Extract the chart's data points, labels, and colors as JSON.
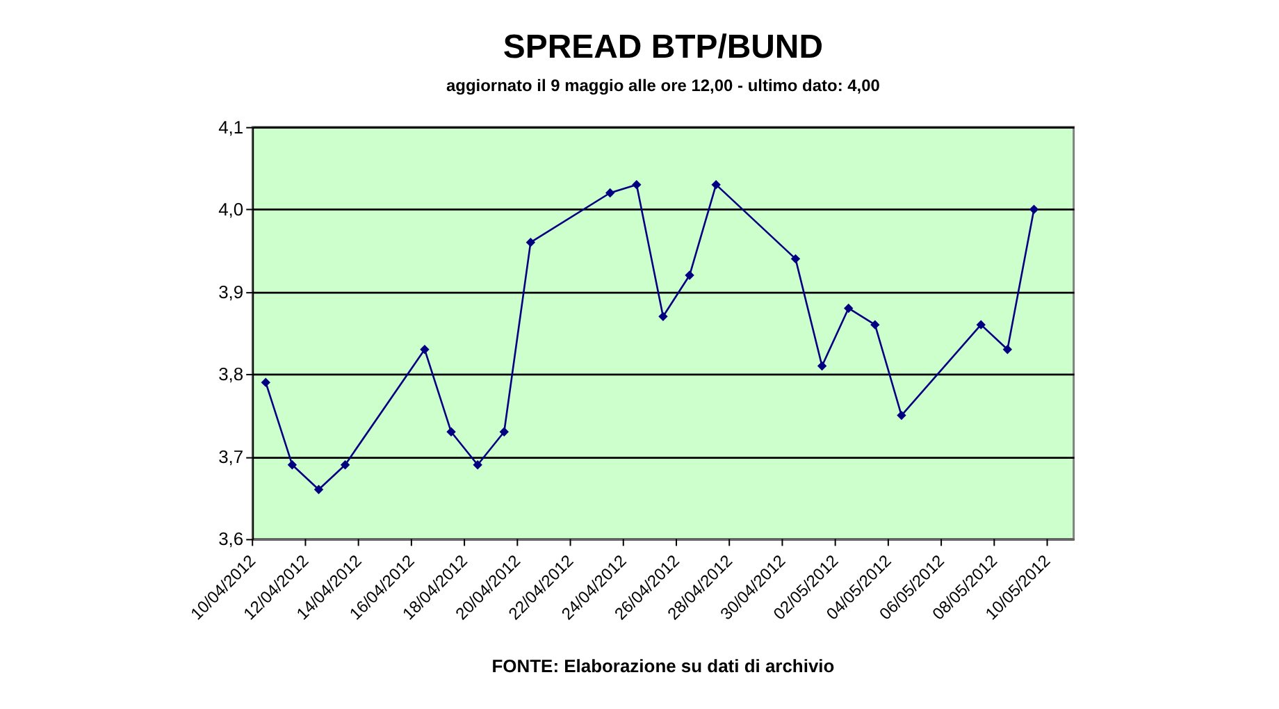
{
  "chart_data": {
    "type": "line",
    "title": "SPREAD BTP/BUND",
    "subtitle": "aggiornato il 9 maggio alle ore 12,00 - ultimo dato: 4,00",
    "annotations": [
      "FONTE: Elaborazione su dati di archivio"
    ],
    "x": [
      "2012-04-10T12:00",
      "2012-04-11T12:00",
      "2012-04-12T12:00",
      "2012-04-13T12:00",
      "2012-04-16T12:00",
      "2012-04-17T12:00",
      "2012-04-18T12:00",
      "2012-04-19T12:00",
      "2012-04-20T12:00",
      "2012-04-23T12:00",
      "2012-04-24T12:00",
      "2012-04-25T12:00",
      "2012-04-26T12:00",
      "2012-04-27T12:00",
      "2012-04-30T12:00",
      "2012-05-01T12:00",
      "2012-05-02T12:00",
      "2012-05-03T12:00",
      "2012-05-04T12:00",
      "2012-05-07T12:00",
      "2012-05-08T12:00",
      "2012-05-09T12:00"
    ],
    "series": [
      {
        "color": "#000080",
        "values": [
          3.79,
          3.69,
          3.66,
          3.69,
          3.83,
          3.73,
          3.69,
          3.73,
          3.96,
          4.02,
          4.03,
          3.87,
          3.92,
          4.03,
          3.94,
          3.81,
          3.88,
          3.86,
          3.75,
          3.86,
          3.83,
          4.0
        ]
      }
    ],
    "xlim": [
      "2012-04-10",
      "2012-05-11"
    ],
    "xticks": [
      {
        "value": "2012-04-10",
        "label": "10/04/2012"
      },
      {
        "value": "2012-04-12",
        "label": "12/04/2012"
      },
      {
        "value": "2012-04-14",
        "label": "14/04/2012"
      },
      {
        "value": "2012-04-16",
        "label": "16/04/2012"
      },
      {
        "value": "2012-04-18",
        "label": "18/04/2012"
      },
      {
        "value": "2012-04-20",
        "label": "20/04/2012"
      },
      {
        "value": "2012-04-22",
        "label": "22/04/2012"
      },
      {
        "value": "2012-04-24",
        "label": "24/04/2012"
      },
      {
        "value": "2012-04-26",
        "label": "26/04/2012"
      },
      {
        "value": "2012-04-28",
        "label": "28/04/2012"
      },
      {
        "value": "2012-04-30",
        "label": "30/04/2012"
      },
      {
        "value": "2012-05-02",
        "label": "02/05/2012"
      },
      {
        "value": "2012-05-04",
        "label": "04/05/2012"
      },
      {
        "value": "2012-05-06",
        "label": "06/05/2012"
      },
      {
        "value": "2012-05-08",
        "label": "08/05/2012"
      },
      {
        "value": "2012-05-10",
        "label": "10/05/2012"
      }
    ],
    "ylim": [
      3.6,
      4.1
    ],
    "yticks": [
      {
        "value": 3.6,
        "label": "3,6"
      },
      {
        "value": 3.7,
        "label": "3,7"
      },
      {
        "value": 3.8,
        "label": "3,8"
      },
      {
        "value": 3.9,
        "label": "3,9"
      },
      {
        "value": 4.0,
        "label": "4,0"
      },
      {
        "value": 4.1,
        "label": "4,1"
      }
    ],
    "grid": "y",
    "marker": "diamond",
    "line_style": "solid"
  }
}
